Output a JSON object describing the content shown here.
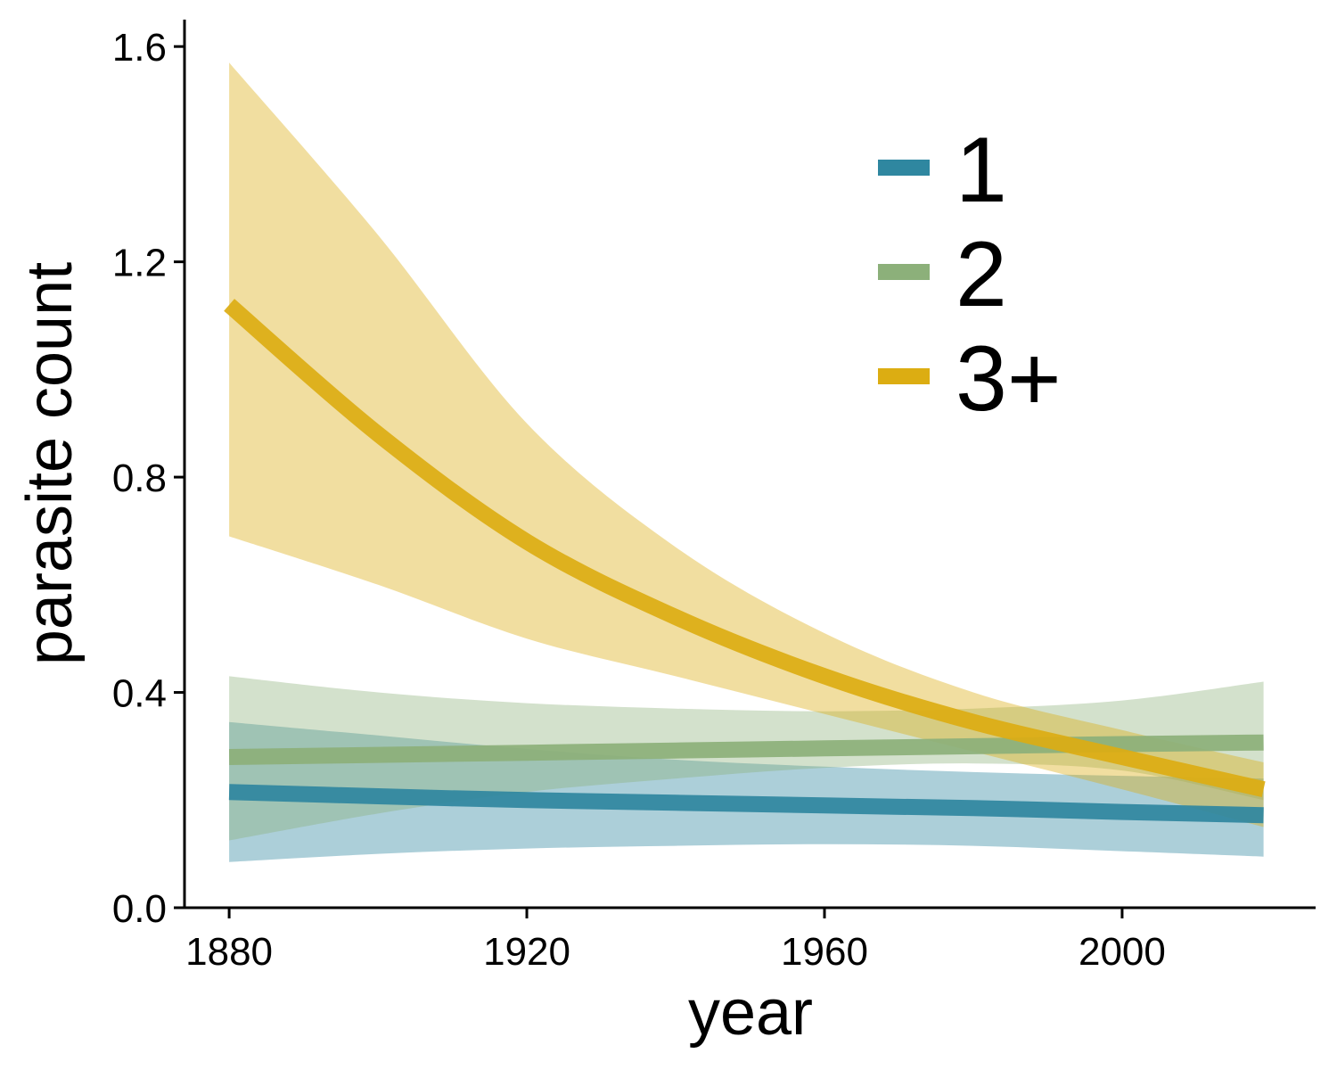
{
  "chart_data": {
    "type": "line",
    "title": "",
    "xlabel": "year",
    "ylabel": "parasite count",
    "xlim": [
      1874,
      2026
    ],
    "ylim": [
      0,
      1.65
    ],
    "x_ticks": [
      "1880",
      "1920",
      "1960",
      "2000"
    ],
    "y_ticks": [
      "0.0",
      "0.4",
      "0.8",
      "1.2",
      "1.6"
    ],
    "grid": false,
    "legend_position": "top-right",
    "x": [
      1880,
      1900,
      1920,
      1940,
      1960,
      1980,
      2000,
      2019
    ],
    "series": [
      {
        "name": "1",
        "color": "#2f87a0",
        "values": [
          0.215,
          0.207,
          0.2,
          0.195,
          0.19,
          0.185,
          0.178,
          0.172
        ],
        "lower": [
          0.085,
          0.1,
          0.11,
          0.115,
          0.118,
          0.115,
          0.105,
          0.095
        ],
        "upper": [
          0.345,
          0.32,
          0.295,
          0.275,
          0.262,
          0.252,
          0.245,
          0.24
        ]
      },
      {
        "name": "2",
        "color": "#8cb07a",
        "values": [
          0.28,
          0.284,
          0.288,
          0.292,
          0.296,
          0.3,
          0.304,
          0.307
        ],
        "lower": [
          0.125,
          0.175,
          0.215,
          0.24,
          0.26,
          0.268,
          0.255,
          0.2
        ],
        "upper": [
          0.43,
          0.4,
          0.38,
          0.37,
          0.365,
          0.37,
          0.385,
          0.42
        ]
      },
      {
        "name": "3+",
        "color": "#dcad12",
        "values": [
          1.12,
          0.88,
          0.68,
          0.54,
          0.43,
          0.345,
          0.28,
          0.22
        ],
        "lower": [
          0.69,
          0.6,
          0.5,
          0.43,
          0.36,
          0.29,
          0.22,
          0.15
        ],
        "upper": [
          1.57,
          1.25,
          0.9,
          0.67,
          0.51,
          0.4,
          0.33,
          0.27
        ]
      }
    ]
  }
}
